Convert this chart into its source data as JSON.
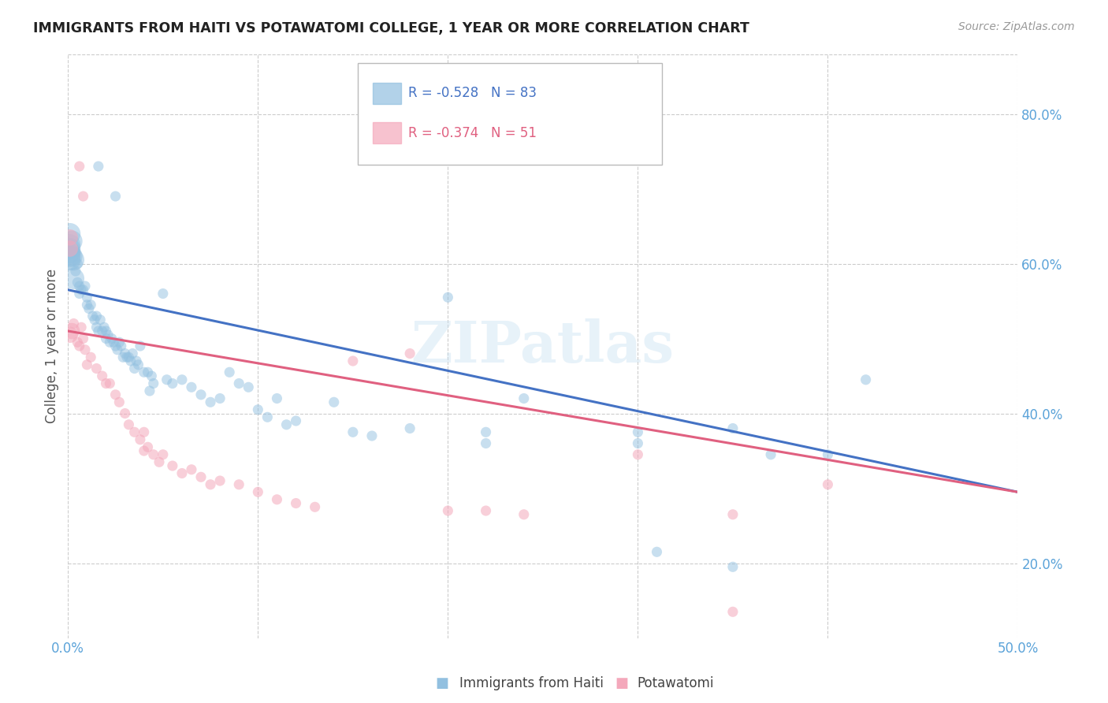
{
  "title": "IMMIGRANTS FROM HAITI VS POTAWATOMI COLLEGE, 1 YEAR OR MORE CORRELATION CHART",
  "source": "Source: ZipAtlas.com",
  "ylabel": "College, 1 year or more",
  "watermark": "ZIPatlas",
  "xlim": [
    0.0,
    0.5
  ],
  "ylim": [
    0.1,
    0.88
  ],
  "xtick_positions": [
    0.0,
    0.1,
    0.2,
    0.3,
    0.4,
    0.5
  ],
  "xticklabels": [
    "0.0%",
    "",
    "",
    "",
    "",
    "50.0%"
  ],
  "yticks_right": [
    0.2,
    0.4,
    0.6,
    0.8
  ],
  "ytick_right_labels": [
    "20.0%",
    "40.0%",
    "60.0%",
    "80.0%"
  ],
  "blue_color": "#92c0e0",
  "pink_color": "#f4a8bb",
  "blue_line_color": "#4472c4",
  "pink_line_color": "#e06080",
  "grid_color": "#cccccc",
  "axis_tick_color": "#5ba3d9",
  "blue_scatter": [
    [
      0.001,
      0.64
    ],
    [
      0.001,
      0.625
    ],
    [
      0.001,
      0.615
    ],
    [
      0.001,
      0.605
    ],
    [
      0.001,
      0.62
    ],
    [
      0.001,
      0.61
    ],
    [
      0.002,
      0.63
    ],
    [
      0.002,
      0.61
    ],
    [
      0.003,
      0.605
    ],
    [
      0.003,
      0.58
    ],
    [
      0.004,
      0.59
    ],
    [
      0.004,
      0.615
    ],
    [
      0.005,
      0.6
    ],
    [
      0.005,
      0.575
    ],
    [
      0.006,
      0.57
    ],
    [
      0.006,
      0.56
    ],
    [
      0.007,
      0.565
    ],
    [
      0.008,
      0.565
    ],
    [
      0.009,
      0.57
    ],
    [
      0.01,
      0.555
    ],
    [
      0.01,
      0.545
    ],
    [
      0.011,
      0.54
    ],
    [
      0.012,
      0.545
    ],
    [
      0.013,
      0.53
    ],
    [
      0.014,
      0.525
    ],
    [
      0.015,
      0.53
    ],
    [
      0.015,
      0.515
    ],
    [
      0.016,
      0.51
    ],
    [
      0.017,
      0.525
    ],
    [
      0.018,
      0.51
    ],
    [
      0.019,
      0.515
    ],
    [
      0.02,
      0.51
    ],
    [
      0.02,
      0.5
    ],
    [
      0.021,
      0.505
    ],
    [
      0.022,
      0.495
    ],
    [
      0.023,
      0.5
    ],
    [
      0.024,
      0.495
    ],
    [
      0.025,
      0.49
    ],
    [
      0.026,
      0.485
    ],
    [
      0.027,
      0.495
    ],
    [
      0.028,
      0.49
    ],
    [
      0.029,
      0.475
    ],
    [
      0.03,
      0.48
    ],
    [
      0.031,
      0.475
    ],
    [
      0.032,
      0.475
    ],
    [
      0.033,
      0.47
    ],
    [
      0.034,
      0.48
    ],
    [
      0.035,
      0.46
    ],
    [
      0.036,
      0.47
    ],
    [
      0.037,
      0.465
    ],
    [
      0.038,
      0.49
    ],
    [
      0.04,
      0.455
    ],
    [
      0.042,
      0.455
    ],
    [
      0.043,
      0.43
    ],
    [
      0.044,
      0.45
    ],
    [
      0.045,
      0.44
    ],
    [
      0.05,
      0.56
    ],
    [
      0.052,
      0.445
    ],
    [
      0.055,
      0.44
    ],
    [
      0.06,
      0.445
    ],
    [
      0.065,
      0.435
    ],
    [
      0.07,
      0.425
    ],
    [
      0.075,
      0.415
    ],
    [
      0.08,
      0.42
    ],
    [
      0.085,
      0.455
    ],
    [
      0.09,
      0.44
    ],
    [
      0.095,
      0.435
    ],
    [
      0.1,
      0.405
    ],
    [
      0.105,
      0.395
    ],
    [
      0.11,
      0.42
    ],
    [
      0.115,
      0.385
    ],
    [
      0.12,
      0.39
    ],
    [
      0.14,
      0.415
    ],
    [
      0.15,
      0.375
    ],
    [
      0.16,
      0.37
    ],
    [
      0.18,
      0.38
    ],
    [
      0.2,
      0.555
    ],
    [
      0.22,
      0.375
    ],
    [
      0.22,
      0.36
    ],
    [
      0.24,
      0.42
    ],
    [
      0.3,
      0.375
    ],
    [
      0.3,
      0.36
    ],
    [
      0.35,
      0.38
    ],
    [
      0.37,
      0.345
    ],
    [
      0.4,
      0.345
    ],
    [
      0.42,
      0.445
    ],
    [
      0.016,
      0.73
    ],
    [
      0.025,
      0.69
    ],
    [
      0.31,
      0.215
    ],
    [
      0.35,
      0.195
    ]
  ],
  "pink_scatter": [
    [
      0.001,
      0.635
    ],
    [
      0.001,
      0.62
    ],
    [
      0.001,
      0.505
    ],
    [
      0.002,
      0.51
    ],
    [
      0.003,
      0.52
    ],
    [
      0.005,
      0.495
    ],
    [
      0.006,
      0.49
    ],
    [
      0.007,
      0.515
    ],
    [
      0.008,
      0.5
    ],
    [
      0.009,
      0.485
    ],
    [
      0.01,
      0.465
    ],
    [
      0.012,
      0.475
    ],
    [
      0.015,
      0.46
    ],
    [
      0.018,
      0.45
    ],
    [
      0.02,
      0.44
    ],
    [
      0.022,
      0.44
    ],
    [
      0.025,
      0.425
    ],
    [
      0.027,
      0.415
    ],
    [
      0.03,
      0.4
    ],
    [
      0.032,
      0.385
    ],
    [
      0.035,
      0.375
    ],
    [
      0.038,
      0.365
    ],
    [
      0.04,
      0.375
    ],
    [
      0.04,
      0.35
    ],
    [
      0.042,
      0.355
    ],
    [
      0.045,
      0.345
    ],
    [
      0.048,
      0.335
    ],
    [
      0.05,
      0.345
    ],
    [
      0.055,
      0.33
    ],
    [
      0.06,
      0.32
    ],
    [
      0.065,
      0.325
    ],
    [
      0.07,
      0.315
    ],
    [
      0.075,
      0.305
    ],
    [
      0.08,
      0.31
    ],
    [
      0.09,
      0.305
    ],
    [
      0.1,
      0.295
    ],
    [
      0.11,
      0.285
    ],
    [
      0.12,
      0.28
    ],
    [
      0.13,
      0.275
    ],
    [
      0.15,
      0.47
    ],
    [
      0.18,
      0.48
    ],
    [
      0.2,
      0.27
    ],
    [
      0.22,
      0.27
    ],
    [
      0.24,
      0.265
    ],
    [
      0.3,
      0.345
    ],
    [
      0.35,
      0.265
    ],
    [
      0.4,
      0.305
    ],
    [
      0.006,
      0.73
    ],
    [
      0.008,
      0.69
    ],
    [
      0.35,
      0.135
    ]
  ],
  "blue_line": {
    "x0": 0.0,
    "y0": 0.565,
    "x1": 0.5,
    "y1": 0.295
  },
  "pink_line": {
    "x0": 0.0,
    "y0": 0.51,
    "x1": 0.5,
    "y1": 0.295
  },
  "figsize": [
    14.06,
    8.92
  ],
  "dpi": 100
}
